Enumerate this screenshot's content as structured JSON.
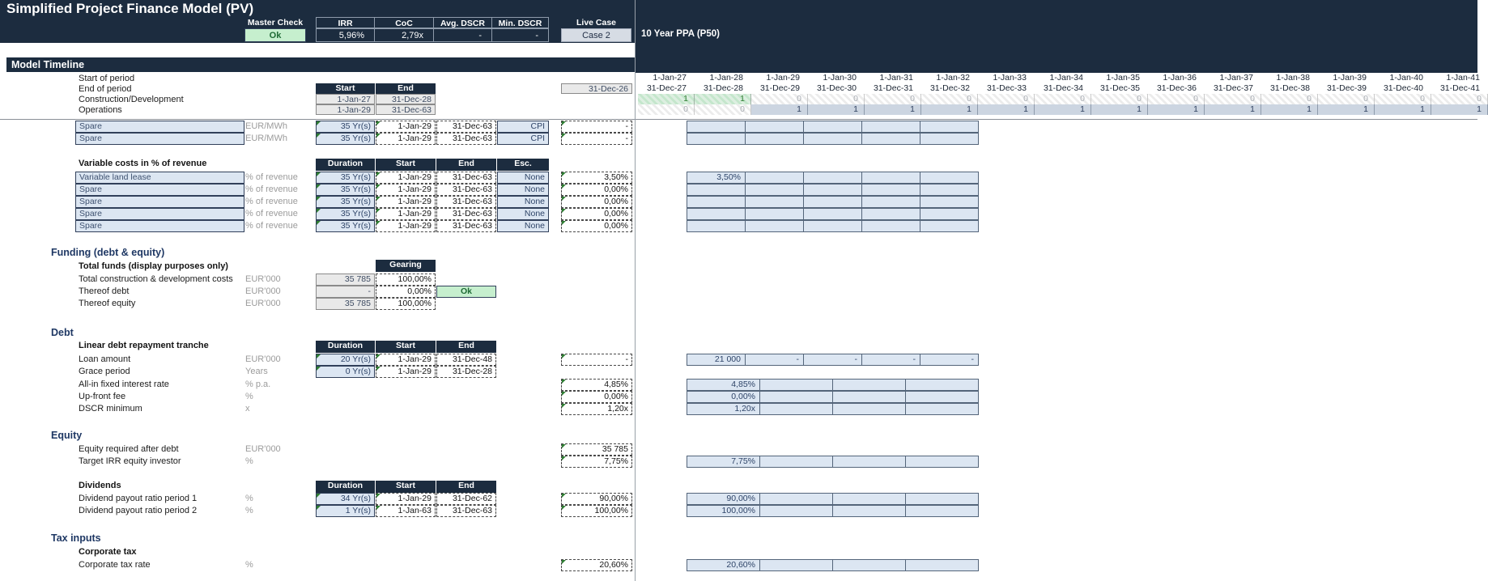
{
  "header": {
    "title": "Simplified Project Finance Model (PV)",
    "master_check_label": "Master Check",
    "master_check_value": "Ok",
    "metrics": [
      {
        "label": "IRR",
        "value": "5,96%"
      },
      {
        "label": "CoC",
        "value": "2,79x"
      },
      {
        "label": "Avg. DSCR",
        "value": "-"
      },
      {
        "label": "Min. DSCR",
        "value": "-"
      }
    ],
    "live_case_label": "Live Case",
    "live_case_value": "Case 2",
    "case_name": "10 Year PPA  (P50)"
  },
  "colors": {
    "navy": "#1C2C3F",
    "good_bg": "#C6EFCE",
    "good_text": "#1E6B34",
    "input_bg": "#DCE6F2",
    "case_bg": "#D6DCE4"
  },
  "timeline": {
    "section_title": "Model Timeline",
    "start_header": "Start",
    "end_header": "End",
    "start_of_period_label": "Start of period",
    "end_of_period_label": "End of period",
    "prior_period_end": "31-Dec-26",
    "period_start_dates": [
      "1-Jan-27",
      "1-Jan-28",
      "1-Jan-29",
      "1-Jan-30",
      "1-Jan-31",
      "1-Jan-32",
      "1-Jan-33",
      "1-Jan-34",
      "1-Jan-35",
      "1-Jan-36",
      "1-Jan-37",
      "1-Jan-38",
      "1-Jan-39",
      "1-Jan-40",
      "1-Jan-41"
    ],
    "period_end_dates": [
      "31-Dec-27",
      "31-Dec-28",
      "31-Dec-29",
      "31-Dec-30",
      "31-Dec-31",
      "31-Dec-32",
      "31-Dec-33",
      "31-Dec-34",
      "31-Dec-35",
      "31-Dec-36",
      "31-Dec-37",
      "31-Dec-38",
      "31-Dec-39",
      "31-Dec-40",
      "31-Dec-41"
    ],
    "construction": {
      "label": "Construction/Development",
      "start": "1-Jan-27",
      "end": "31-Dec-28",
      "flags": [
        1,
        1,
        0,
        0,
        0,
        0,
        0,
        0,
        0,
        0,
        0,
        0,
        0,
        0,
        0
      ]
    },
    "operations": {
      "label": "Operations",
      "start": "1-Jan-29",
      "end": "31-Dec-63",
      "flags": [
        0,
        0,
        1,
        1,
        1,
        1,
        1,
        1,
        1,
        1,
        1,
        1,
        1,
        1,
        1
      ]
    },
    "spare_rows": [
      {
        "label": "Spare",
        "unit": "EUR/MWh",
        "duration": "35 Yr(s)",
        "start": "1-Jan-29",
        "end": "31-Dec-63",
        "esc": "CPI",
        "value": "-",
        "grid": [
          "",
          "",
          "",
          "",
          ""
        ]
      },
      {
        "label": "Spare",
        "unit": "EUR/MWh",
        "duration": "35 Yr(s)",
        "start": "1-Jan-29",
        "end": "31-Dec-63",
        "esc": "CPI",
        "value": "-",
        "grid": [
          "",
          "",
          "",
          "",
          ""
        ]
      }
    ]
  },
  "variable_costs": {
    "section_title": "Variable costs in % of revenue",
    "headers": {
      "duration": "Duration",
      "start": "Start",
      "end": "End",
      "esc": "Esc."
    },
    "rows": [
      {
        "label": "Variable land lease",
        "unit": "% of revenue",
        "duration": "35 Yr(s)",
        "start": "1-Jan-29",
        "end": "31-Dec-63",
        "esc": "None",
        "value": "3,50%",
        "grid": [
          "3,50%",
          "",
          "",
          "",
          ""
        ]
      },
      {
        "label": "Spare",
        "unit": "% of revenue",
        "duration": "35 Yr(s)",
        "start": "1-Jan-29",
        "end": "31-Dec-63",
        "esc": "None",
        "value": "0,00%",
        "grid": [
          "",
          "",
          "",
          "",
          ""
        ]
      },
      {
        "label": "Spare",
        "unit": "% of revenue",
        "duration": "35 Yr(s)",
        "start": "1-Jan-29",
        "end": "31-Dec-63",
        "esc": "None",
        "value": "0,00%",
        "grid": [
          "",
          "",
          "",
          "",
          ""
        ]
      },
      {
        "label": "Spare",
        "unit": "% of revenue",
        "duration": "35 Yr(s)",
        "start": "1-Jan-29",
        "end": "31-Dec-63",
        "esc": "None",
        "value": "0,00%",
        "grid": [
          "",
          "",
          "",
          "",
          ""
        ]
      },
      {
        "label": "Spare",
        "unit": "% of revenue",
        "duration": "35 Yr(s)",
        "start": "1-Jan-29",
        "end": "31-Dec-63",
        "esc": "None",
        "value": "0,00%",
        "grid": [
          "",
          "",
          "",
          "",
          ""
        ]
      }
    ]
  },
  "funding": {
    "section_title": "Funding (debt & equity)",
    "subtitle": "Total funds (display purposes only)",
    "gearing_header": "Gearing",
    "rows": [
      {
        "label": "Total construction & development costs",
        "unit": "EUR'000",
        "amount": "35 785",
        "gearing": "100,00%",
        "check": ""
      },
      {
        "label": "Thereof debt",
        "unit": "EUR'000",
        "amount": "-",
        "gearing": "0,00%",
        "check": "Ok"
      },
      {
        "label": "Thereof equity",
        "unit": "EUR'000",
        "amount": "35 785",
        "gearing": "100,00%",
        "check": ""
      }
    ]
  },
  "debt": {
    "section_title": "Debt",
    "subtitle": "Linear debt repayment tranche",
    "headers": {
      "duration": "Duration",
      "start": "Start",
      "end": "End"
    },
    "loan": {
      "label": "Loan amount",
      "unit": "EUR'000",
      "duration": "20 Yr(s)",
      "start": "1-Jan-29",
      "end": "31-Dec-48",
      "value": "-",
      "grid": [
        "21 000",
        "-",
        "-",
        "-",
        "-"
      ]
    },
    "grace": {
      "label": "Grace period",
      "unit": "Years",
      "duration": "0 Yr(s)",
      "start": "1-Jan-29",
      "end": "31-Dec-28"
    },
    "params": [
      {
        "label": "All-in fixed interest rate",
        "unit": "% p.a.",
        "value": "4,85%",
        "grid": [
          "4,85%",
          "",
          "",
          ""
        ]
      },
      {
        "label": "Up-front fee",
        "unit": "%",
        "value": "0,00%",
        "grid": [
          "0,00%",
          "",
          "",
          ""
        ]
      },
      {
        "label": "DSCR minimum",
        "unit": "x",
        "value": "1,20x",
        "grid": [
          "1,20x",
          "",
          "",
          ""
        ]
      }
    ]
  },
  "equity": {
    "section_title": "Equity",
    "rows": [
      {
        "label": "Equity required after debt",
        "unit": "EUR'000",
        "value": "35 785"
      },
      {
        "label": "Target IRR equity investor",
        "unit": "%",
        "value": "7,75%",
        "grid": [
          "7,75%",
          "",
          "",
          ""
        ]
      }
    ]
  },
  "dividends": {
    "subtitle": "Dividends",
    "headers": {
      "duration": "Duration",
      "start": "Start",
      "end": "End"
    },
    "rows": [
      {
        "label": "Dividend payout ratio period 1",
        "unit": "%",
        "duration": "34 Yr(s)",
        "start": "1-Jan-29",
        "end": "31-Dec-62",
        "value": "90,00%",
        "grid": [
          "90,00%",
          "",
          "",
          ""
        ]
      },
      {
        "label": "Dividend payout ratio period 2",
        "unit": "%",
        "duration": "1 Yr(s)",
        "start": "1-Jan-63",
        "end": "31-Dec-63",
        "value": "100,00%",
        "grid": [
          "100,00%",
          "",
          "",
          ""
        ]
      }
    ]
  },
  "tax": {
    "section_title": "Tax inputs",
    "subtitle": "Corporate tax",
    "row": {
      "label": "Corporate tax rate",
      "unit": "%",
      "value": "20,60%",
      "grid": [
        "20,60%",
        "",
        "",
        ""
      ]
    }
  }
}
